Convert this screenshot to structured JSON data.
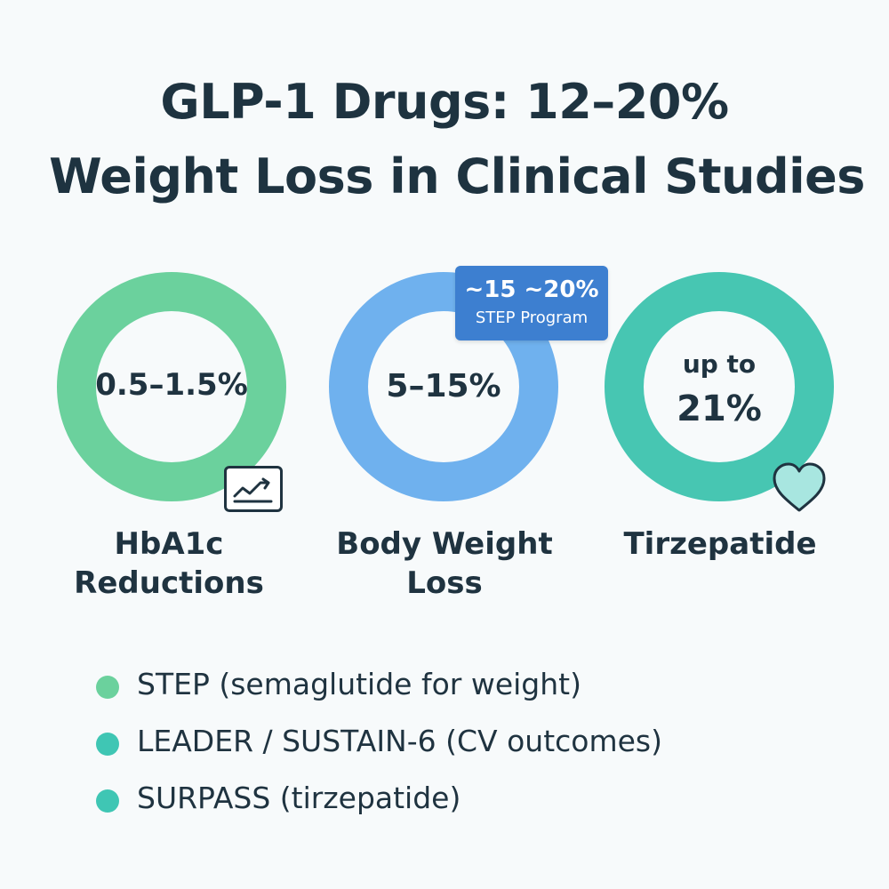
{
  "title": {
    "line1": "GLP-1 Drugs: 12–20%",
    "line2": "Weight Loss in Clinical Studies"
  },
  "rings": [
    {
      "value": "0.5–1.5%",
      "label_line1": "HbA1c",
      "label_line2": "Reductions",
      "color": "#6bd19d",
      "icon": "trend-chart-icon"
    },
    {
      "value": "5–15%",
      "label_line1": "Body Weight",
      "label_line2": "Loss",
      "color": "#6fb1ee"
    },
    {
      "value_line1": "up to",
      "value_line2": "21%",
      "label_line1": "Tirzepatide",
      "color": "#47c6b2",
      "icon": "heart-icon"
    }
  ],
  "badge": {
    "line1": "~15 ~20%",
    "line2": "STEP Program",
    "color": "#3d7fd0"
  },
  "legend": [
    {
      "text": "STEP (semaglutide for weight)",
      "color": "#6bd19d"
    },
    {
      "text": "LEADER / SUSTAIN-6 (CV outcomes)",
      "color": "#3fc6b4"
    },
    {
      "text": "SURPASS (tirzepatide)",
      "color": "#3fc6b4"
    }
  ]
}
